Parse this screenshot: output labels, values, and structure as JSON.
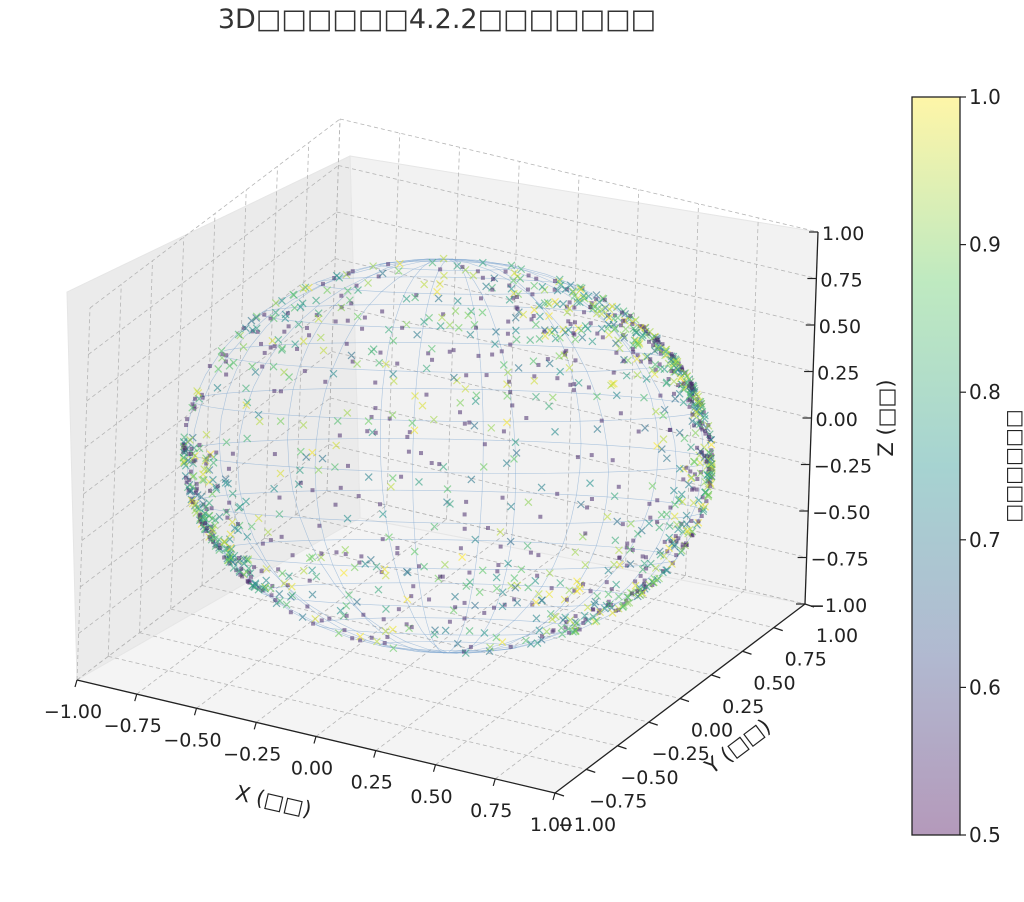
{
  "chart_data": {
    "type": "scatter",
    "title": "3D□□□□□□4.2.2□□□□□□□",
    "xlabel": "X (□□)",
    "ylabel": "Y (□□)",
    "zlabel": "Z (□□)",
    "colorbar_label": "□□□□□□",
    "xlim": [
      -1.0,
      1.0
    ],
    "ylim": [
      -1.0,
      1.0
    ],
    "zlim": [
      -1.0,
      1.0
    ],
    "x_ticks": [
      "−1.00",
      "−0.75",
      "−0.50",
      "−0.25",
      "0.00",
      "0.25",
      "0.50",
      "0.75",
      "1.00"
    ],
    "y_ticks": [
      "−1.00",
      "−0.75",
      "−0.50",
      "−0.25",
      "0.00",
      "0.25",
      "0.50",
      "0.75",
      "1.00"
    ],
    "z_ticks": [
      "−1.00",
      "−0.75",
      "−0.50",
      "−0.25",
      "0.00",
      "0.25",
      "0.50",
      "0.75",
      "1.00"
    ],
    "colorbar_ticks": [
      "0.5",
      "0.6",
      "0.7",
      "0.8",
      "0.9",
      "1.0"
    ],
    "colorbar_range": [
      0.5,
      1.0
    ],
    "colormap": "viridis",
    "grid": true,
    "surface": "unit sphere wireframe",
    "colors": {
      "wireframe": "#7ea6d0",
      "pane": "#f2f2f2",
      "grid": "#b5b5b5"
    },
    "series": [
      {
        "marker": "square",
        "value_range": [
          0.5,
          0.55
        ]
      },
      {
        "marker": "x",
        "value_range": [
          0.65,
          1.0
        ]
      }
    ]
  }
}
